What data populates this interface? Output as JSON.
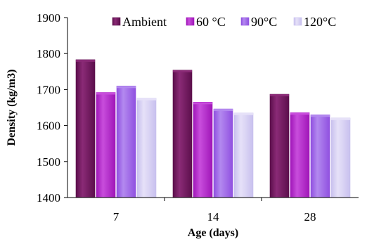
{
  "chart_data": {
    "type": "bar",
    "categories": [
      "7",
      "14",
      "28"
    ],
    "series": [
      {
        "name": "Ambient",
        "values": [
          1783,
          1754,
          1687
        ],
        "color": "#5c0f4c",
        "light": "#8a2a76"
      },
      {
        "name": "60 °C",
        "values": [
          1692,
          1665,
          1636
        ],
        "color": "#a016b8",
        "light": "#c84ddc"
      },
      {
        "name": "90°C",
        "values": [
          1710,
          1646,
          1630
        ],
        "color": "#9050e0",
        "light": "#b389ef"
      },
      {
        "name": "120°C",
        "values": [
          1676,
          1635,
          1621
        ],
        "color": "#c8c0ee",
        "light": "#e6e1f8"
      }
    ],
    "xlabel": "Age (days)",
    "ylabel": "Density (kg/m3)",
    "ylim": [
      1400,
      1900
    ],
    "yticks": [
      1400,
      1500,
      1600,
      1700,
      1800,
      1900
    ],
    "grid": false,
    "legend": "top"
  }
}
